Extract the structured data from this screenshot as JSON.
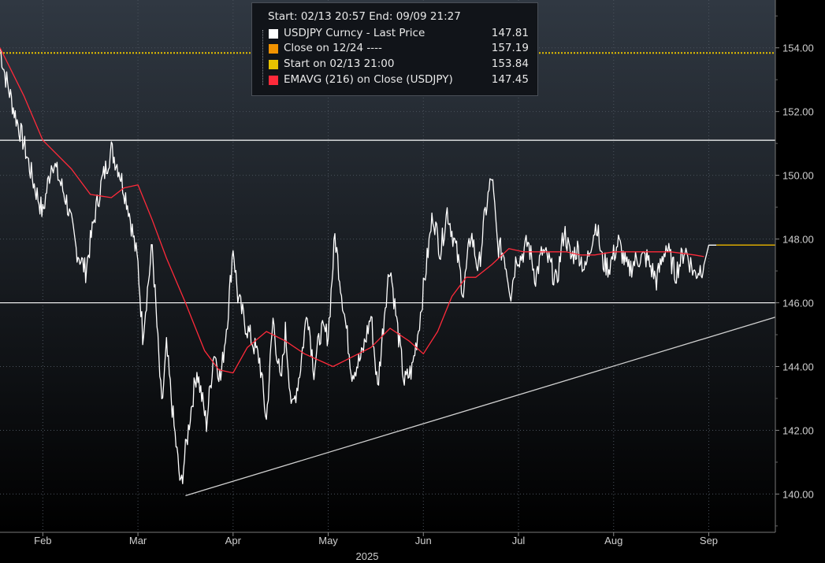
{
  "chart_data": {
    "type": "line",
    "legend": {
      "header": "Start: 02/13 20:57 End: 09/09 21:27",
      "placement": "top-center",
      "items": [
        {
          "label": "USDJPY Curncy - Last Price",
          "value": "147.81",
          "color": "#ffffff"
        },
        {
          "label": "Close on 12/24 ----",
          "value": "157.19",
          "color": "#f29300"
        },
        {
          "label": "Start on 02/13 21:00",
          "value": "153.84",
          "color": "#e6c200"
        },
        {
          "label": "EMAVG (216)  on Close (USDJPY)",
          "value": "147.45",
          "color": "#ff2a3a"
        }
      ]
    },
    "y_axis": {
      "side": "right",
      "ylim": [
        138.8,
        155.5
      ],
      "ticks": [
        "140.00",
        "142.00",
        "144.00",
        "146.00",
        "148.00",
        "150.00",
        "152.00",
        "154.00"
      ],
      "tick_values": [
        140,
        142,
        144,
        146,
        148,
        150,
        152,
        154
      ]
    },
    "x_axis": {
      "xlim": [
        -0.45,
        7.7
      ],
      "month_labels": [
        "Feb",
        "Mar",
        "Apr",
        "May",
        "Jun",
        "Jul",
        "Aug",
        "Sep"
      ],
      "month_positions": [
        0,
        1,
        2,
        3,
        4,
        5,
        6,
        7
      ],
      "year_label": "2025"
    },
    "grid": true,
    "series": [
      {
        "name": "USDJPY Curncy - Last Price",
        "color": "#ffffff",
        "x": [
          -0.45,
          -0.4,
          -0.3,
          -0.2,
          -0.1,
          0.0,
          0.05,
          0.1,
          0.25,
          0.35,
          0.45,
          0.55,
          0.62,
          0.72,
          0.8,
          0.9,
          1.0,
          1.05,
          1.15,
          1.25,
          1.3,
          1.38,
          1.45,
          1.55,
          1.62,
          1.72,
          1.8,
          1.87,
          1.95,
          2.0,
          2.05,
          2.12,
          2.2,
          2.28,
          2.35,
          2.42,
          2.5,
          2.55,
          2.62,
          2.7,
          2.78,
          2.85,
          2.92,
          3.0,
          3.07,
          3.15,
          3.25,
          3.35,
          3.45,
          3.52,
          3.6,
          3.65,
          3.72,
          3.8,
          3.88,
          3.95,
          4.02,
          4.1,
          4.18,
          4.25,
          4.35,
          4.42,
          4.5,
          4.58,
          4.65,
          4.72,
          4.78,
          4.85,
          4.92,
          4.98,
          5.02,
          5.1,
          5.18,
          5.25,
          5.32,
          5.4,
          5.48,
          5.55,
          5.62,
          5.7,
          5.77,
          5.82,
          5.88,
          5.95,
          6.05,
          6.15,
          6.25,
          6.35,
          6.45,
          6.55,
          6.65,
          6.75,
          6.85,
          6.95,
          7.0,
          7.05,
          7.08
        ],
        "values": [
          154.0,
          153.2,
          152.0,
          151.0,
          149.8,
          148.8,
          149.7,
          150.5,
          149.2,
          147.7,
          147.0,
          148.8,
          149.8,
          150.8,
          150.2,
          149.0,
          147.2,
          145.0,
          147.8,
          142.7,
          144.6,
          142.1,
          140.2,
          142.5,
          143.9,
          142.2,
          144.5,
          143.6,
          145.8,
          147.8,
          146.2,
          145.4,
          144.8,
          144.2,
          142.3,
          145.5,
          143.4,
          145.1,
          142.6,
          143.8,
          145.8,
          143.9,
          145.1,
          145.0,
          148.1,
          146.1,
          143.8,
          144.3,
          145.6,
          143.3,
          146.0,
          147.2,
          145.4,
          143.5,
          143.9,
          145.2,
          146.9,
          148.8,
          147.6,
          148.9,
          147.6,
          146.3,
          148.2,
          147.0,
          148.8,
          150.0,
          147.8,
          147.5,
          146.3,
          147.5,
          147.4,
          147.9,
          146.8,
          147.6,
          147.3,
          146.6,
          148.3,
          147.4,
          147.7,
          147.0,
          148.0,
          148.5,
          147.3,
          147.1,
          147.9,
          147.0,
          147.4,
          147.4,
          146.7,
          147.8,
          146.9,
          147.7,
          146.9,
          147.2,
          147.81,
          147.81,
          147.81
        ]
      },
      {
        "name": "EMAVG (216)  on Close (USDJPY)",
        "color": "#ff2a3a",
        "x": [
          -0.45,
          -0.2,
          0.0,
          0.3,
          0.5,
          0.72,
          0.85,
          1.0,
          1.15,
          1.3,
          1.5,
          1.7,
          1.85,
          2.0,
          2.15,
          2.35,
          2.55,
          2.75,
          2.9,
          3.05,
          3.25,
          3.45,
          3.65,
          3.85,
          4.0,
          4.15,
          4.3,
          4.45,
          4.55,
          4.72,
          4.9,
          5.05,
          5.2,
          5.35,
          5.5,
          5.65,
          5.8,
          6.0,
          6.3,
          6.6,
          6.85,
          6.95
        ],
        "values": [
          154.0,
          152.5,
          151.1,
          150.2,
          149.4,
          149.3,
          149.6,
          149.7,
          148.6,
          147.4,
          146.0,
          144.5,
          143.9,
          143.8,
          144.6,
          145.1,
          144.8,
          144.4,
          144.2,
          144.0,
          144.3,
          144.6,
          145.2,
          144.8,
          144.4,
          145.1,
          146.2,
          146.8,
          146.8,
          147.2,
          147.7,
          147.6,
          147.6,
          147.6,
          147.6,
          147.5,
          147.5,
          147.6,
          147.6,
          147.6,
          147.5,
          147.45
        ]
      }
    ],
    "reference_lines": [
      {
        "label": "Start on 02/13 21:00",
        "value": 153.84,
        "color": "#e6c200",
        "style": "dotted"
      },
      {
        "label": "Last Price",
        "value": 147.81,
        "color": "#d9a800",
        "style": "solid-stub"
      }
    ],
    "annotations": [
      {
        "type": "horizontal-line",
        "y": 151.1,
        "color": "#ffffff"
      },
      {
        "type": "horizontal-line",
        "y": 146.0,
        "color": "#ffffff"
      },
      {
        "type": "trendline",
        "points": [
          [
            1.5,
            139.95
          ],
          [
            7.7,
            145.55
          ]
        ],
        "color": "#d0d0d0"
      }
    ]
  }
}
